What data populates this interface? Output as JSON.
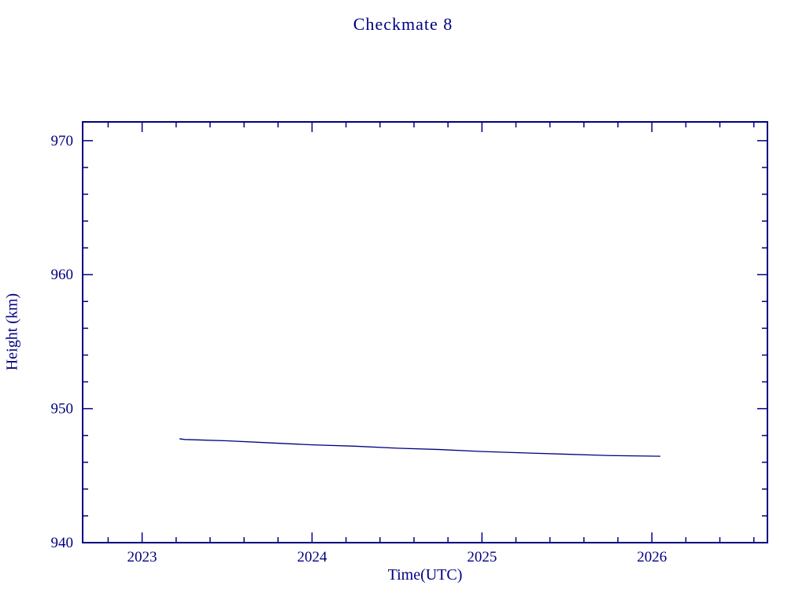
{
  "page": {
    "background": "#ffffff"
  },
  "chart_data": {
    "type": "line",
    "title": "Checkmate 8",
    "xlabel": "Time(UTC)",
    "ylabel": "Height (km)",
    "color": "#000080",
    "background": "#ffffff",
    "grid": false,
    "legend": "none",
    "xlim": [
      2022.65,
      2026.68
    ],
    "ylim": [
      940,
      971.4
    ],
    "xticks": [
      2023,
      2024,
      2025,
      2026
    ],
    "yticks": [
      940,
      950,
      960,
      970
    ],
    "x_minor_step": 0.2,
    "y_minor_step": 2,
    "series": [
      {
        "name": "height-km",
        "x": [
          2023.22,
          2023.25,
          2023.5,
          2023.75,
          2024.0,
          2024.25,
          2024.5,
          2024.75,
          2025.0,
          2025.25,
          2025.5,
          2025.75,
          2026.05
        ],
        "y": [
          947.75,
          947.7,
          947.6,
          947.45,
          947.3,
          947.2,
          947.05,
          946.95,
          946.8,
          946.7,
          946.6,
          946.5,
          946.45
        ]
      }
    ]
  }
}
